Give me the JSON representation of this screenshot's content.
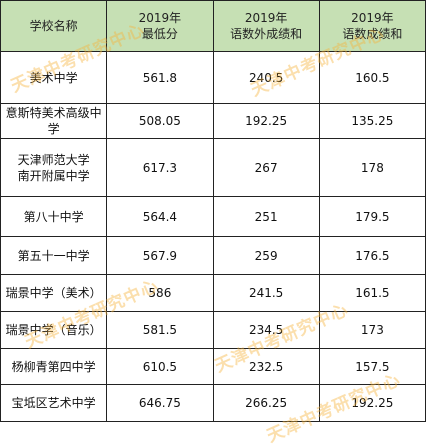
{
  "table": {
    "headers": [
      {
        "line1": "学校名称",
        "line2": ""
      },
      {
        "line1": "2019年",
        "line2": "最低分"
      },
      {
        "line1": "2019年",
        "line2": "语数外成绩和"
      },
      {
        "line1": "2019年",
        "line2": "语数成绩和"
      }
    ],
    "rows": [
      {
        "name_line1": "美术中学",
        "name_line2": "",
        "min_score": "561.8",
        "cme_sum": "240.5",
        "cm_sum": "160.5"
      },
      {
        "name_line1": "意斯特美术高级中学",
        "name_line2": "",
        "min_score": "508.05",
        "cme_sum": "192.25",
        "cm_sum": "135.25"
      },
      {
        "name_line1": "天津师范大学",
        "name_line2": "南开附属中学",
        "min_score": "617.3",
        "cme_sum": "267",
        "cm_sum": "178"
      },
      {
        "name_line1": "第八十中学",
        "name_line2": "",
        "min_score": "564.4",
        "cme_sum": "251",
        "cm_sum": "179.5"
      },
      {
        "name_line1": "第五十一中学",
        "name_line2": "",
        "min_score": "567.9",
        "cme_sum": "259",
        "cm_sum": "176.5"
      },
      {
        "name_line1": "瑞景中学（美术）",
        "name_line2": "",
        "min_score": "586",
        "cme_sum": "241.5",
        "cm_sum": "161.5"
      },
      {
        "name_line1": "瑞景中学（音乐）",
        "name_line2": "",
        "min_score": "581.5",
        "cme_sum": "234.5",
        "cm_sum": "173"
      },
      {
        "name_line1": "杨柳青第四中学",
        "name_line2": "",
        "min_score": "610.5",
        "cme_sum": "232.5",
        "cm_sum": "157.5"
      },
      {
        "name_line1": "宝坻区艺术中学",
        "name_line2": "",
        "min_score": "646.75",
        "cme_sum": "266.25",
        "cm_sum": "192.25"
      }
    ]
  },
  "watermark": {
    "text": "天津中考研究中心",
    "color": "#f6b23c"
  }
}
